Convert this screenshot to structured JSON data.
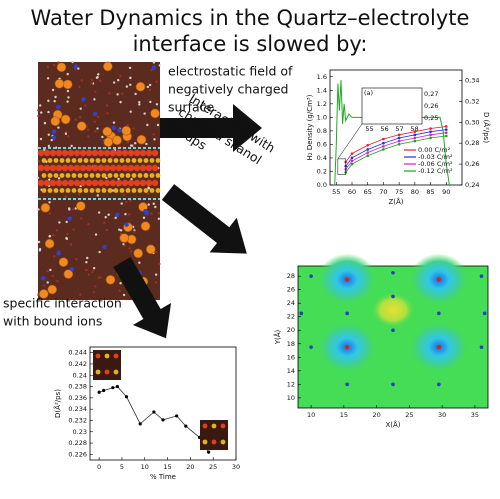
{
  "title": [
    "Water Dynamics in the  Quartz–electrolyte",
    "interface is slowed by:"
  ],
  "arrow_labels": [
    [
      "electrostatic field of",
      "negatively charged",
      "surface"
    ],
    [
      "Interaction with",
      "charged silanol",
      "groups"
    ],
    [
      "specific interaction",
      "with bound ions"
    ]
  ],
  "panels": [
    {
      "type": "line",
      "xlabel": "Z(Å)",
      "ylabel": "H₂ Density (g/Cm³)",
      "y2label": "D (Å²/ps)",
      "xlim": [
        53,
        95
      ],
      "xticks": [
        55,
        60,
        65,
        70,
        75,
        80,
        85,
        90
      ],
      "ylim": [
        0,
        1.7
      ],
      "yticks": [
        {
          "value": 0,
          "label": "0.0"
        },
        {
          "value": 0.2,
          "label": "0.2"
        },
        {
          "value": 0.4,
          "label": "0.4"
        },
        {
          "value": 0.6,
          "label": "0.6"
        },
        {
          "value": 0.8,
          "label": "0.8"
        },
        {
          "value": 1,
          "label": "1.0"
        },
        {
          "value": 1.2,
          "label": "1.2"
        },
        {
          "value": 1.4,
          "label": "1.4"
        },
        {
          "value": 1.6,
          "label": "1.6"
        }
      ],
      "y2lim": [
        0.24,
        0.35
      ],
      "y2ticks": [
        {
          "value": 0.24,
          "label": "0,24"
        },
        {
          "value": 0.26,
          "label": "0,26"
        },
        {
          "value": 0.28,
          "label": "0,28"
        },
        {
          "value": 0.3,
          "label": "0,30"
        },
        {
          "value": 0.32,
          "label": "0,32"
        },
        {
          "value": 0.34,
          "label": "0,34"
        }
      ],
      "density": {
        "color": "#22aa22",
        "x": [
          54.5,
          55,
          55.5,
          56,
          56.5,
          57,
          57.5,
          58,
          59,
          60,
          62,
          65,
          70,
          80,
          88,
          89,
          90,
          91
        ],
        "values": [
          0,
          0.6,
          1.5,
          1.1,
          1.55,
          0.9,
          1.2,
          0.95,
          1.05,
          1.0,
          1.0,
          1.0,
          1.0,
          1.0,
          1.0,
          0.8,
          0.3,
          0
        ]
      },
      "x": [
        58,
        60,
        65,
        70,
        75,
        80,
        85,
        90
      ],
      "series": [
        {
          "name": "0.00 C/m²",
          "color": "#e8202a",
          "axis": "y2",
          "values": [
            0.262,
            0.27,
            0.278,
            0.284,
            0.288,
            0.291,
            0.294,
            0.296
          ]
        },
        {
          "name": "-0.03 C/m²",
          "color": "#2030e0",
          "axis": "y2",
          "values": [
            0.258,
            0.266,
            0.274,
            0.28,
            0.285,
            0.288,
            0.291,
            0.293
          ]
        },
        {
          "name": "-0.06 C/m²",
          "color": "#d020d0",
          "axis": "y2",
          "values": [
            0.255,
            0.263,
            0.271,
            0.277,
            0.282,
            0.285,
            0.288,
            0.29
          ]
        },
        {
          "name": "-0.12 C/m²",
          "color": "#20a020",
          "axis": "y2",
          "values": [
            0.252,
            0.26,
            0.268,
            0.274,
            0.279,
            0.282,
            0.285,
            0.287
          ]
        }
      ],
      "inset": {
        "label": "(a)",
        "xlim": [
          54.5,
          58.5
        ],
        "xticks": [
          55,
          56,
          57,
          58
        ],
        "ylim": [
          0.245,
          0.275
        ],
        "yticks": [
          {
            "value": 0.25,
            "label": "0,25"
          },
          {
            "value": 0.26,
            "label": "0,26"
          },
          {
            "value": 0.27,
            "label": "0,27"
          }
        ]
      }
    },
    {
      "type": "contour",
      "xlabel": "X(Å)",
      "ylabel": "Y(Å)",
      "xlim": [
        8,
        37
      ],
      "xticks": [
        10,
        15,
        20,
        25,
        30,
        35
      ],
      "ylim": [
        8.5,
        29.5
      ],
      "yticks": [
        10,
        12,
        14,
        16,
        18,
        20,
        22,
        24,
        26,
        28
      ],
      "wells": {
        "color": "#e02020",
        "x": [
          15.5,
          29.5,
          15.5,
          29.5
        ],
        "y": [
          27.5,
          27.5,
          17.5,
          17.5
        ]
      },
      "sites": {
        "color": "#2040c0",
        "x": [
          22.5,
          22.5,
          10,
          36,
          10,
          36,
          22.5,
          22.5,
          15.5,
          29.5,
          15.5,
          29.5,
          8.5,
          36.5
        ],
        "y": [
          28.5,
          20,
          28,
          28,
          17.5,
          17.5,
          12,
          25,
          12,
          12,
          22.5,
          22.5,
          22.5,
          22.5
        ]
      }
    },
    {
      "type": "scatter",
      "xlabel": "% Time",
      "ylabel": "D(Å²/ps)",
      "xlim": [
        -2,
        30
      ],
      "xticks": [
        0,
        5,
        10,
        15,
        20,
        25,
        30
      ],
      "ylim": [
        0.225,
        0.245
      ],
      "yticks": [
        0.226,
        0.228,
        0.23,
        0.232,
        0.234,
        0.236,
        0.238,
        0.24,
        0.242,
        0.244
      ],
      "x": [
        0,
        1,
        3,
        4,
        6,
        9,
        12,
        14,
        17,
        19,
        22,
        24
      ],
      "values": [
        0.237,
        0.2373,
        0.2378,
        0.238,
        0.2362,
        0.2314,
        0.2335,
        0.2321,
        0.2328,
        0.231,
        0.229,
        0.2264
      ]
    }
  ]
}
